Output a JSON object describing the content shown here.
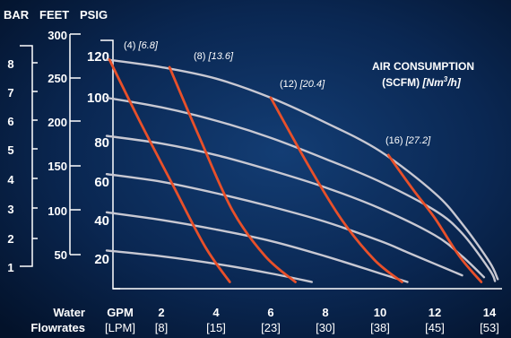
{
  "chart_data": {
    "type": "line",
    "scale_headers": {
      "bar": "BAR",
      "feet": "FEET",
      "psig": "PSIG"
    },
    "bar_ticks": [
      "1",
      "2",
      "3",
      "4",
      "5",
      "6",
      "7",
      "8"
    ],
    "feet_ticks": [
      "50",
      "100",
      "150",
      "200",
      "250",
      "300"
    ],
    "psig_ticks": [
      "20",
      "40",
      "60",
      "80",
      "100",
      "120"
    ],
    "gpm_header": "GPM",
    "lpm_header": "[LPM]",
    "water_label": "Water",
    "flowrates_label": "Flowrates",
    "gpm_ticks": [
      "2",
      "4",
      "6",
      "8",
      "10",
      "12",
      "14"
    ],
    "lpm_ticks": [
      "[8]",
      "[15]",
      "[23]",
      "[30]",
      "[38]",
      "[45]",
      "[53]"
    ],
    "legend_title_line1": "AIR CONSUMPTION",
    "legend_title_line2_prefix": "(SCFM) ",
    "legend_title_line2_unit": "[Nm",
    "legend_title_line2_sup": "3",
    "legend_title_line2_close": "/h]",
    "xlim": [
      0,
      14.5
    ],
    "ylim": [
      0,
      125
    ],
    "pressure_curves": [
      {
        "points": [
          [
            0,
            120
          ],
          [
            2,
            116
          ],
          [
            4,
            110
          ],
          [
            6,
            100
          ],
          [
            8,
            87
          ],
          [
            10,
            72
          ],
          [
            12,
            50
          ],
          [
            13,
            34
          ],
          [
            14,
            14
          ],
          [
            14.3,
            5
          ]
        ]
      },
      {
        "points": [
          [
            0,
            100
          ],
          [
            2,
            95
          ],
          [
            4,
            88
          ],
          [
            6,
            79
          ],
          [
            8,
            68
          ],
          [
            10,
            56
          ],
          [
            12,
            41
          ],
          [
            13,
            29
          ],
          [
            14,
            10
          ],
          [
            14.2,
            4
          ]
        ]
      },
      {
        "points": [
          [
            0,
            80
          ],
          [
            2,
            76
          ],
          [
            4,
            70
          ],
          [
            6,
            62
          ],
          [
            8,
            53
          ],
          [
            10,
            42
          ],
          [
            12,
            28
          ],
          [
            13,
            17
          ],
          [
            13.8,
            6
          ]
        ]
      },
      {
        "points": [
          [
            0,
            60
          ],
          [
            2,
            56
          ],
          [
            4,
            50
          ],
          [
            6,
            43
          ],
          [
            8,
            35
          ],
          [
            10,
            25
          ],
          [
            11,
            19
          ],
          [
            12,
            13
          ],
          [
            13,
            7
          ]
        ]
      },
      {
        "points": [
          [
            0,
            40
          ],
          [
            2,
            36
          ],
          [
            4,
            31
          ],
          [
            6,
            25
          ],
          [
            8,
            17
          ],
          [
            10,
            8
          ],
          [
            11,
            3.5
          ]
        ]
      },
      {
        "points": [
          [
            0,
            20
          ],
          [
            2,
            17
          ],
          [
            4,
            13
          ],
          [
            6,
            8
          ],
          [
            7.5,
            3.5
          ]
        ]
      }
    ],
    "air_curves": [
      {
        "scfm": "(4)",
        "nm3h": "[6.8]",
        "points": [
          [
            0.1,
            120
          ],
          [
            1.2,
            88
          ],
          [
            2.5,
            52
          ],
          [
            3.6,
            22
          ],
          [
            4.5,
            3.5
          ]
        ]
      },
      {
        "scfm": "(8)",
        "nm3h": "[13.6]",
        "points": [
          [
            2.3,
            116
          ],
          [
            3.4,
            79
          ],
          [
            4.6,
            41
          ],
          [
            5.8,
            17
          ],
          [
            6.9,
            3.5
          ]
        ]
      },
      {
        "scfm": "(12)",
        "nm3h": "[20.4]",
        "points": [
          [
            6.0,
            100
          ],
          [
            7.4,
            64
          ],
          [
            8.6,
            36
          ],
          [
            9.8,
            15
          ],
          [
            10.8,
            3.5
          ]
        ]
      },
      {
        "scfm": "(16)",
        "nm3h": "[27.2]",
        "points": [
          [
            10.3,
            70
          ],
          [
            11.2,
            52
          ],
          [
            12.0,
            37
          ],
          [
            12.9,
            17
          ],
          [
            13.7,
            3.5
          ]
        ]
      }
    ],
    "colors": {
      "background": "#061a38",
      "pressure_curve": "#c8c8d2",
      "air_curve": "#e8502a",
      "text": "#ffffff"
    },
    "grid": false,
    "legend_placement": "top-right"
  }
}
